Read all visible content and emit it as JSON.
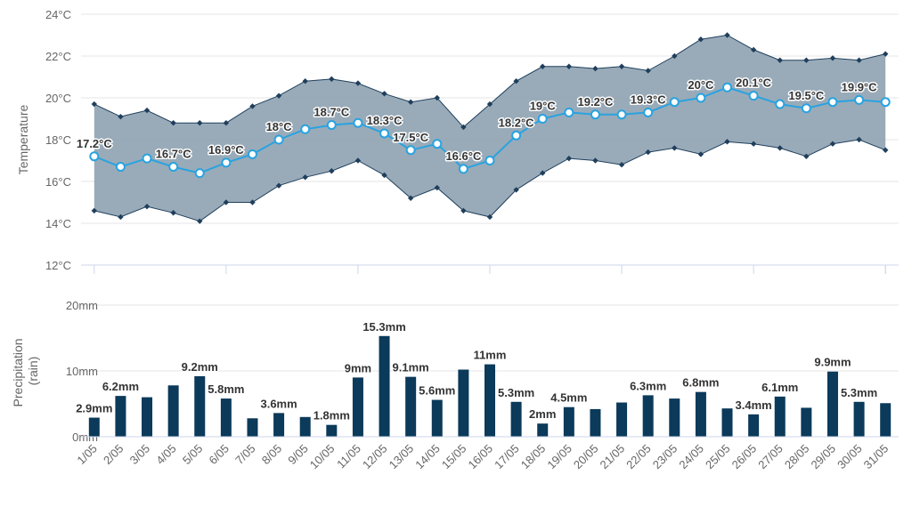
{
  "chart_data": [
    {
      "type": "area",
      "title": "",
      "ylabel": "Temperature",
      "y_ticks": [
        "12°C",
        "14°C",
        "16°C",
        "18°C",
        "20°C",
        "22°C",
        "24°C"
      ],
      "ylim": [
        12,
        24
      ],
      "grid": true,
      "colors": {
        "range_fill": "#93a6b5",
        "range_line": "#1f3f5c",
        "mean_line": "#29a3e0",
        "marker_fill": "#ffffff"
      },
      "x": [
        "1/05",
        "2/05",
        "3/05",
        "4/05",
        "5/05",
        "6/05",
        "7/05",
        "8/05",
        "9/05",
        "10/05",
        "11/05",
        "12/05",
        "13/05",
        "14/05",
        "15/05",
        "16/05",
        "17/05",
        "18/05",
        "19/05",
        "20/05",
        "21/05",
        "22/05",
        "23/05",
        "24/05",
        "25/05",
        "26/05",
        "27/05",
        "28/05",
        "29/05",
        "30/05",
        "31/05"
      ],
      "series": [
        {
          "values": [
            19.7,
            19.1,
            19.4,
            18.8,
            18.8,
            18.8,
            19.6,
            20.1,
            20.8,
            20.9,
            20.7,
            20.2,
            19.8,
            20.0,
            18.6,
            19.7,
            20.8,
            21.5,
            21.5,
            21.4,
            21.5,
            21.3,
            22.0,
            22.8,
            23.0,
            22.3,
            21.8,
            21.8,
            21.9,
            21.8,
            22.1
          ]
        },
        {
          "values": [
            14.6,
            14.3,
            14.8,
            14.5,
            14.1,
            15.0,
            15.0,
            15.8,
            16.2,
            16.5,
            17.0,
            16.3,
            15.2,
            15.7,
            14.6,
            14.3,
            15.6,
            16.4,
            17.1,
            17.0,
            16.8,
            17.4,
            17.6,
            17.3,
            17.9,
            17.8,
            17.6,
            17.2,
            17.8,
            18.0,
            17.5
          ]
        },
        {
          "values": [
            17.2,
            16.7,
            17.1,
            16.7,
            16.4,
            16.9,
            17.3,
            18.0,
            18.5,
            18.7,
            18.8,
            18.3,
            17.5,
            17.8,
            16.6,
            17.0,
            18.2,
            19.0,
            19.3,
            19.2,
            19.2,
            19.3,
            19.8,
            20.0,
            20.5,
            20.1,
            19.7,
            19.5,
            19.8,
            19.9,
            19.8
          ]
        }
      ],
      "data_labels": [
        {
          "index": 0,
          "text": "17.2°C"
        },
        {
          "index": 3,
          "text": "16.7°C"
        },
        {
          "index": 5,
          "text": "16.9°C"
        },
        {
          "index": 7,
          "text": "18°C"
        },
        {
          "index": 9,
          "text": "18.7°C"
        },
        {
          "index": 11,
          "text": "18.3°C"
        },
        {
          "index": 12,
          "text": "17.5°C"
        },
        {
          "index": 14,
          "text": "16.6°C"
        },
        {
          "index": 16,
          "text": "18.2°C"
        },
        {
          "index": 17,
          "text": "19°C"
        },
        {
          "index": 19,
          "text": "19.2°C"
        },
        {
          "index": 21,
          "text": "19.3°C"
        },
        {
          "index": 23,
          "text": "20°C"
        },
        {
          "index": 25,
          "text": "20.1°C"
        },
        {
          "index": 27,
          "text": "19.5°C"
        },
        {
          "index": 29,
          "text": "19.9°C"
        }
      ]
    },
    {
      "type": "bar",
      "title": "",
      "ylabel": "Precipitation (rain)",
      "ylabel_lines": [
        "Precipitation",
        "(rain)"
      ],
      "y_ticks": [
        "0mm",
        "10mm",
        "20mm"
      ],
      "ylim": [
        0,
        20
      ],
      "grid": true,
      "colors": {
        "bar": "#0b3a5a"
      },
      "categories": [
        "1/05",
        "2/05",
        "3/05",
        "4/05",
        "5/05",
        "6/05",
        "7/05",
        "8/05",
        "9/05",
        "10/05",
        "11/05",
        "12/05",
        "13/05",
        "14/05",
        "15/05",
        "16/05",
        "17/05",
        "18/05",
        "19/05",
        "20/05",
        "21/05",
        "22/05",
        "23/05",
        "24/05",
        "25/05",
        "26/05",
        "27/05",
        "28/05",
        "29/05",
        "30/05",
        "31/05"
      ],
      "values": [
        2.9,
        6.2,
        6.0,
        7.8,
        9.2,
        5.8,
        2.8,
        3.6,
        3.0,
        1.8,
        9.0,
        15.3,
        9.1,
        5.6,
        10.2,
        11.0,
        5.3,
        2.0,
        4.5,
        4.2,
        5.2,
        6.3,
        5.8,
        6.8,
        4.3,
        3.4,
        6.1,
        4.4,
        9.9,
        5.3,
        5.1
      ],
      "data_labels": [
        {
          "index": 0,
          "text": "2.9mm"
        },
        {
          "index": 1,
          "text": "6.2mm"
        },
        {
          "index": 4,
          "text": "9.2mm"
        },
        {
          "index": 5,
          "text": "5.8mm"
        },
        {
          "index": 7,
          "text": "3.6mm"
        },
        {
          "index": 9,
          "text": "1.8mm"
        },
        {
          "index": 10,
          "text": "9mm"
        },
        {
          "index": 11,
          "text": "15.3mm"
        },
        {
          "index": 12,
          "text": "9.1mm"
        },
        {
          "index": 13,
          "text": "5.6mm"
        },
        {
          "index": 15,
          "text": "11mm"
        },
        {
          "index": 16,
          "text": "5.3mm"
        },
        {
          "index": 17,
          "text": "2mm"
        },
        {
          "index": 18,
          "text": "4.5mm"
        },
        {
          "index": 21,
          "text": "6.3mm"
        },
        {
          "index": 23,
          "text": "6.8mm"
        },
        {
          "index": 25,
          "text": "3.4mm"
        },
        {
          "index": 26,
          "text": "6.1mm"
        },
        {
          "index": 28,
          "text": "9.9mm"
        },
        {
          "index": 29,
          "text": "5.3mm"
        }
      ]
    }
  ]
}
